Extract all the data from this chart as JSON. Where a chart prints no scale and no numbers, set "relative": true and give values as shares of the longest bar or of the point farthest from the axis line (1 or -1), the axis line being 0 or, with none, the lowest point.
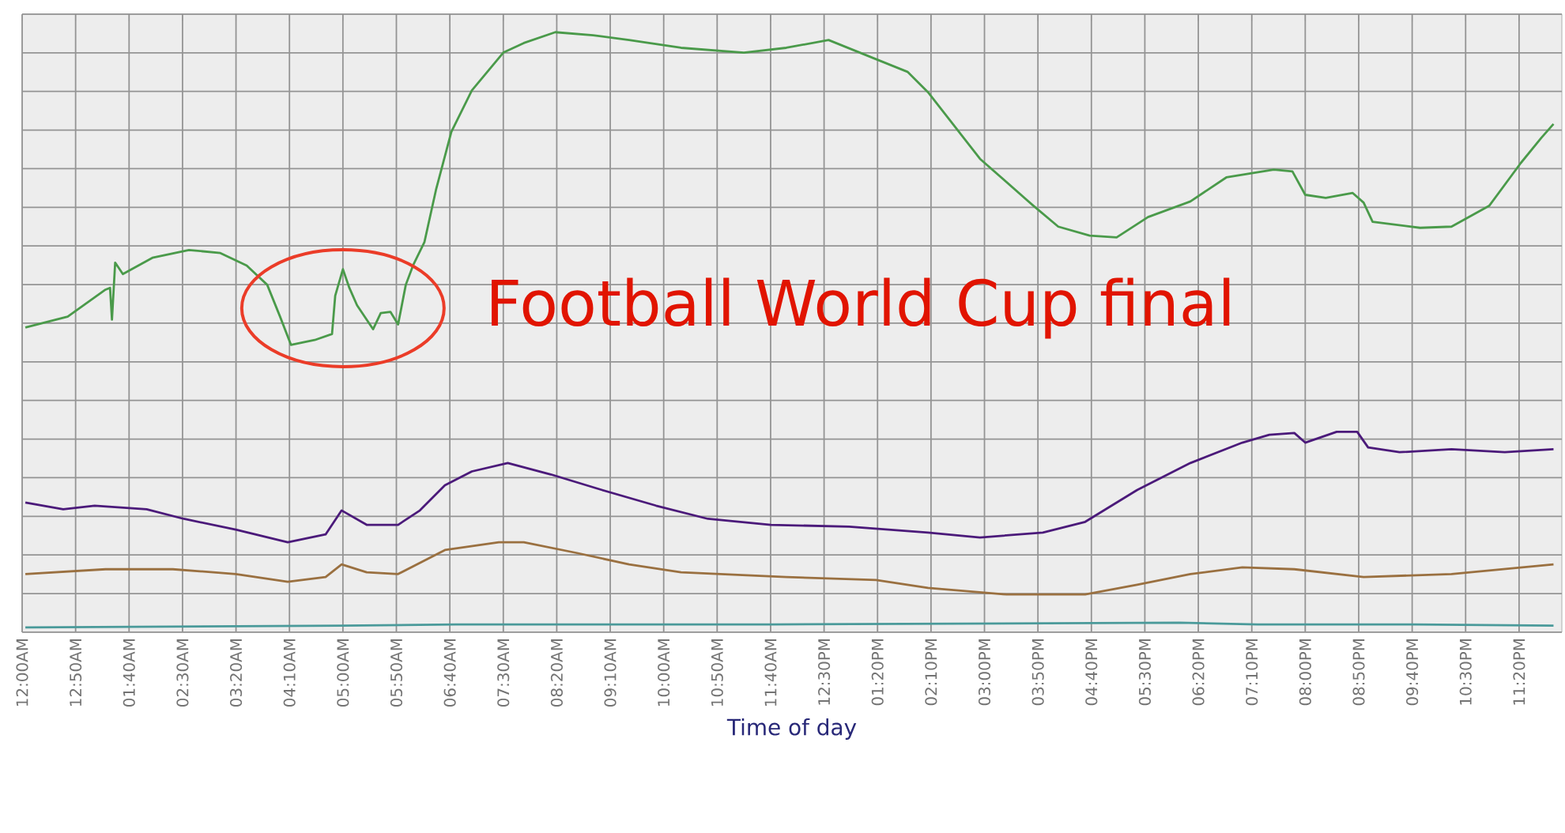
{
  "chart_data": {
    "type": "line",
    "relative": true,
    "xlabel": "Time of day",
    "grid": true,
    "marker": "none",
    "line_style": "solid",
    "xlim": [
      0,
      24
    ],
    "xticks": [
      {
        "value": 0,
        "label": "12:00AM"
      },
      {
        "value": 0.8333,
        "label": "12:50AM"
      },
      {
        "value": 1.6667,
        "label": "01:40AM"
      },
      {
        "value": 2.5,
        "label": "02:30AM"
      },
      {
        "value": 3.3333,
        "label": "03:20AM"
      },
      {
        "value": 4.1667,
        "label": "04:10AM"
      },
      {
        "value": 5,
        "label": "05:00AM"
      },
      {
        "value": 5.8333,
        "label": "05:50AM"
      },
      {
        "value": 6.6667,
        "label": "06:40AM"
      },
      {
        "value": 7.5,
        "label": "07:30AM"
      },
      {
        "value": 8.3333,
        "label": "08:20AM"
      },
      {
        "value": 9.1667,
        "label": "09:10AM"
      },
      {
        "value": 10,
        "label": "10:00AM"
      },
      {
        "value": 10.8333,
        "label": "10:50AM"
      },
      {
        "value": 11.6667,
        "label": "11:40AM"
      },
      {
        "value": 12.5,
        "label": "12:30PM"
      },
      {
        "value": 13.3333,
        "label": "01:20PM"
      },
      {
        "value": 14.1667,
        "label": "02:10PM"
      },
      {
        "value": 15,
        "label": "03:00PM"
      },
      {
        "value": 15.8333,
        "label": "03:50PM"
      },
      {
        "value": 16.6667,
        "label": "04:40PM"
      },
      {
        "value": 17.5,
        "label": "05:30PM"
      },
      {
        "value": 18.3333,
        "label": "06:20PM"
      },
      {
        "value": 19.1667,
        "label": "07:10PM"
      },
      {
        "value": 20,
        "label": "08:00PM"
      },
      {
        "value": 20.8333,
        "label": "08:50PM"
      },
      {
        "value": 21.6667,
        "label": "09:40PM"
      },
      {
        "value": 22.5,
        "label": "10:30PM"
      },
      {
        "value": 23.3333,
        "label": "11:20PM"
      }
    ],
    "annotations": [
      {
        "text": "Football World Cup final",
        "x": 5.0,
        "y": 0.54
      }
    ],
    "series": [
      {
        "color": "#4a9a4a",
        "x": [
          0.05,
          0.71,
          1.3,
          1.37,
          1.4,
          1.45,
          1.57,
          2.03,
          2.6,
          3.09,
          3.5,
          3.82,
          4.02,
          4.19,
          4.56,
          4.83,
          4.88,
          5.0,
          5.1,
          5.22,
          5.47,
          5.59,
          5.74,
          5.86,
          5.98,
          6.1,
          6.27,
          6.45,
          6.69,
          7.01,
          7.5,
          7.82,
          8.31,
          8.9,
          9.46,
          10.27,
          11.25,
          11.91,
          12.57,
          13.31,
          13.8,
          14.12,
          14.93,
          15.76,
          16.15,
          16.64,
          17.06,
          17.55,
          18.21,
          18.77,
          19.51,
          19.8,
          20.0,
          20.32,
          20.74,
          20.91,
          21.05,
          21.79,
          22.28,
          22.87,
          23.36,
          23.68,
          23.87
        ],
        "values": [
          0.508,
          0.526,
          0.571,
          0.574,
          0.521,
          0.616,
          0.597,
          0.624,
          0.637,
          0.632,
          0.611,
          0.579,
          0.526,
          0.479,
          0.487,
          0.497,
          0.561,
          0.605,
          0.574,
          0.545,
          0.505,
          0.532,
          0.534,
          0.513,
          0.579,
          0.613,
          0.65,
          0.737,
          0.834,
          0.903,
          0.966,
          0.982,
          1.0,
          0.995,
          0.987,
          0.974,
          0.966,
          0.974,
          0.987,
          0.955,
          0.934,
          0.9,
          0.789,
          0.711,
          0.676,
          0.661,
          0.658,
          0.692,
          0.718,
          0.758,
          0.771,
          0.768,
          0.729,
          0.724,
          0.732,
          0.716,
          0.684,
          0.674,
          0.676,
          0.711,
          0.782,
          0.824,
          0.847
        ]
      },
      {
        "color": "#4b1a7a",
        "x": [
          0.05,
          0.64,
          1.13,
          1.94,
          2.52,
          3.33,
          4.14,
          4.73,
          4.98,
          5.37,
          5.86,
          6.2,
          6.59,
          7.01,
          7.57,
          8.24,
          9.04,
          9.88,
          10.69,
          11.67,
          12.89,
          14.12,
          14.93,
          15.91,
          16.57,
          17.38,
          18.21,
          19.02,
          19.44,
          19.83,
          20.0,
          20.49,
          20.81,
          20.98,
          21.47,
          22.28,
          23.11,
          23.87
        ],
        "values": [
          0.216,
          0.205,
          0.211,
          0.205,
          0.189,
          0.171,
          0.15,
          0.163,
          0.203,
          0.179,
          0.179,
          0.203,
          0.245,
          0.268,
          0.282,
          0.263,
          0.237,
          0.211,
          0.189,
          0.179,
          0.176,
          0.166,
          0.158,
          0.166,
          0.184,
          0.237,
          0.282,
          0.316,
          0.329,
          0.332,
          0.316,
          0.334,
          0.334,
          0.308,
          0.3,
          0.305,
          0.3,
          0.305
        ]
      },
      {
        "color": "#9a7040",
        "x": [
          0.05,
          1.3,
          2.35,
          3.33,
          4.14,
          4.73,
          4.98,
          5.37,
          5.86,
          6.59,
          7.43,
          7.82,
          8.65,
          9.46,
          10.27,
          11.91,
          13.31,
          14.12,
          15.34,
          16.57,
          17.38,
          18.21,
          19.02,
          19.83,
          20.91,
          22.28,
          23.87
        ],
        "values": [
          0.097,
          0.105,
          0.105,
          0.097,
          0.084,
          0.092,
          0.113,
          0.1,
          0.097,
          0.137,
          0.15,
          0.15,
          0.132,
          0.113,
          0.1,
          0.092,
          0.087,
          0.074,
          0.063,
          0.063,
          0.079,
          0.097,
          0.108,
          0.105,
          0.092,
          0.097,
          0.113
        ]
      },
      {
        "color": "#4a9a9a",
        "x": [
          0.05,
          5.0,
          6.76,
          11.67,
          18.04,
          19.26,
          21.72,
          23.87
        ],
        "values": [
          0.008,
          0.011,
          0.013,
          0.013,
          0.016,
          0.013,
          0.013,
          0.011
        ]
      }
    ]
  }
}
